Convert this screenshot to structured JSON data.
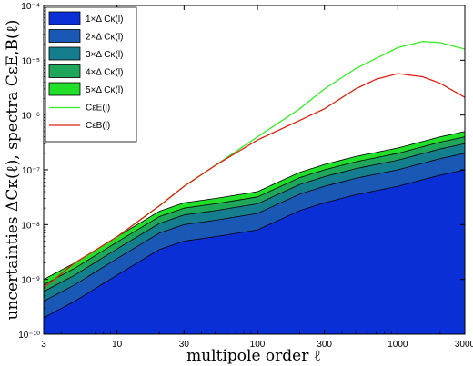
{
  "chart_data": {
    "type": "area",
    "title": "",
    "xlabel": "multipole order ℓ",
    "ylabel": "uncertainties ΔCκ(ℓ), spectra CεE,B(ℓ)",
    "xscale": "log",
    "yscale": "log",
    "xlim": [
      3,
      3000
    ],
    "ylim": [
      1e-10,
      0.0001
    ],
    "x_ticks": [
      "3",
      "10",
      "30",
      "100",
      "300",
      "1000",
      "3000"
    ],
    "x_tick_values": [
      3,
      10,
      30,
      100,
      300,
      1000,
      3000
    ],
    "y_ticks": [
      "10⁻¹⁰",
      "10⁻⁹",
      "10⁻⁸",
      "10⁻⁷",
      "10⁻⁶",
      "10⁻⁵",
      "10⁻⁴"
    ],
    "y_tick_values": [
      1e-10,
      1e-09,
      1e-08,
      1e-07,
      1e-06,
      1e-05,
      0.0001
    ],
    "legend_position": "top-left",
    "base_uncertainty": {
      "x": [
        3,
        5,
        10,
        20,
        30,
        50,
        100,
        200,
        300,
        500,
        1000,
        2000,
        3000
      ],
      "y": [
        2e-10,
        4e-10,
        1.2e-09,
        3.5e-09,
        5e-09,
        6e-09,
        8e-09,
        1.8e-08,
        2.5e-08,
        3.5e-08,
        5e-08,
        8e-08,
        1e-07
      ]
    },
    "series": [
      {
        "name": "1×Δ Cκ(l)",
        "kind": "band",
        "multiplier": 1,
        "color": "#0a2fd6"
      },
      {
        "name": "2×Δ Cκ(l)",
        "kind": "band",
        "multiplier": 2,
        "color": "#1a58b5"
      },
      {
        "name": "3×Δ Cκ(l)",
        "kind": "band",
        "multiplier": 3,
        "color": "#147e8e"
      },
      {
        "name": "4×Δ Cκ(l)",
        "kind": "band",
        "multiplier": 4,
        "color": "#1ea65a"
      },
      {
        "name": "5×Δ Cκ(l)",
        "kind": "band",
        "multiplier": 5,
        "color": "#22e02a"
      },
      {
        "name": "CεE(l)",
        "kind": "line",
        "color": "#33ee22",
        "x": [
          3,
          5,
          10,
          20,
          30,
          50,
          100,
          200,
          300,
          500,
          1000,
          1500,
          2000,
          3000
        ],
        "y": [
          7e-10,
          2e-09,
          6e-09,
          2.2e-08,
          5e-08,
          1.2e-07,
          4e-07,
          1.3e-06,
          3e-06,
          7e-06,
          1.7e-05,
          2.2e-05,
          2.1e-05,
          1.6e-05
        ]
      },
      {
        "name": "CεB(l)",
        "kind": "line",
        "color": "#dd2211",
        "x": [
          3,
          5,
          10,
          20,
          30,
          50,
          100,
          200,
          300,
          500,
          700,
          1000,
          1500,
          2000,
          3000
        ],
        "y": [
          7e-10,
          2e-09,
          6e-09,
          2.2e-08,
          5e-08,
          1.2e-07,
          3.5e-07,
          8e-07,
          1.3e-06,
          3e-06,
          4.5e-06,
          5.7e-06,
          5e-06,
          3.8e-06,
          2.1e-06
        ]
      }
    ]
  }
}
